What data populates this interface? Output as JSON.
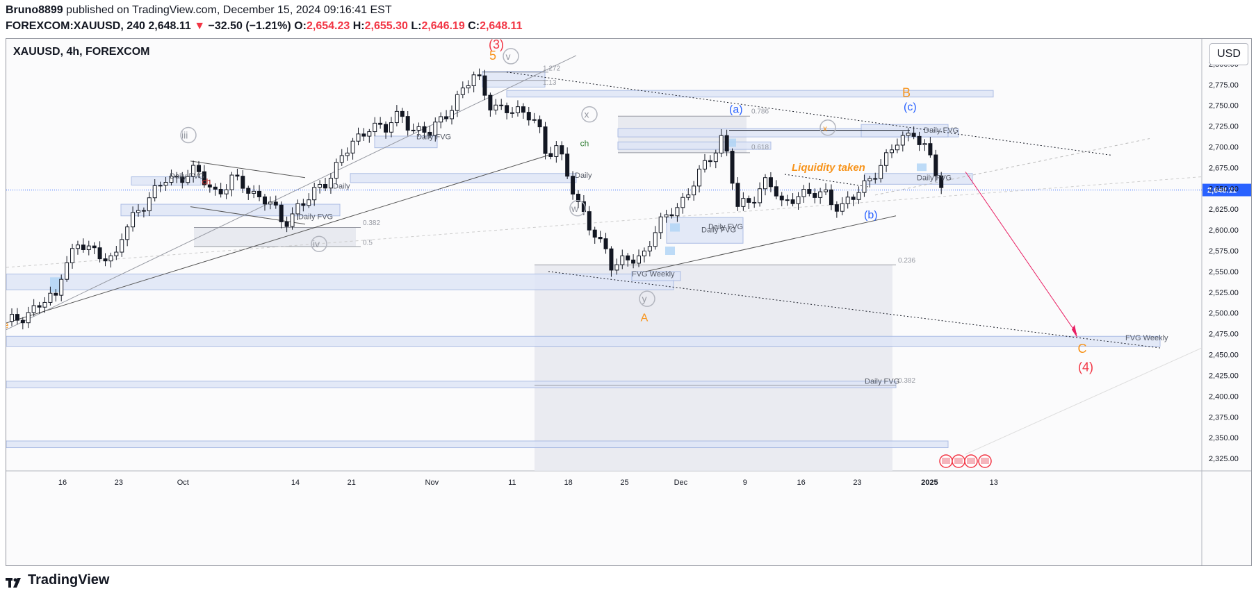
{
  "header": {
    "author": "Bruno8899",
    "published_text": "published on TradingView.com, December 15, 2024 09:16:41 EST",
    "ticker": "FOREXCOM:XAUUSD, 240",
    "last": "2,648.11",
    "change_arrow": "▼",
    "change": "−32.50 (−1.21%)",
    "o_label": "O:",
    "o": "2,654.23",
    "h_label": "H:",
    "h": "2,655.30",
    "l_label": "L:",
    "l": "2,646.19",
    "c_label": "C:",
    "c": "2,648.11"
  },
  "chart_title": "XAUUSD, 4h, FOREXCOM",
  "currency_button": "USD",
  "footer_brand": "TradingView",
  "colors": {
    "up": "#131722",
    "down": "#131722",
    "fvg": "#dde4f5",
    "orange": "#f7931a",
    "red": "#f23645",
    "blue": "#2962ff"
  },
  "chart_data": {
    "type": "candlestick",
    "title": "XAUUSD, 4h, FOREXCOM",
    "ylim": [
      2310,
      2830
    ],
    "y_ticks": [
      "2,800.00",
      "2,775.00",
      "2,750.00",
      "2,725.00",
      "2,700.00",
      "2,675.00",
      "2,650.00",
      "2,625.00",
      "2,600.00",
      "2,575.00",
      "2,550.00",
      "2,525.00",
      "2,500.00",
      "2,475.00",
      "2,450.00",
      "2,425.00",
      "2,400.00",
      "2,375.00",
      "2,350.00",
      "2,325.00"
    ],
    "y_tick_values": [
      2800,
      2775,
      2750,
      2725,
      2700,
      2675,
      2650,
      2625,
      2600,
      2575,
      2550,
      2525,
      2500,
      2475,
      2450,
      2425,
      2400,
      2375,
      2350,
      2325
    ],
    "x_ticks": [
      "16",
      "23",
      "Oct",
      "14",
      "21",
      "Nov",
      "11",
      "18",
      "25",
      "Dec",
      "9",
      "16",
      "23",
      "2025",
      "13"
    ],
    "x_tick_days": [
      0,
      7,
      15,
      29,
      36,
      46,
      56,
      63,
      70,
      77,
      85,
      92,
      99,
      108,
      116
    ],
    "x_start": "2024-09-12",
    "last_price": "2,648.11",
    "last_price_value": 2648.11,
    "price_path": [
      [
        -2,
        2490
      ],
      [
        2,
        2510
      ],
      [
        4,
        2520
      ],
      [
        5,
        2560
      ],
      [
        7,
        2580
      ],
      [
        9,
        2575
      ],
      [
        11,
        2570
      ],
      [
        12,
        2560
      ],
      [
        13,
        2590
      ],
      [
        15,
        2625
      ],
      [
        17,
        2640
      ],
      [
        19,
        2660
      ],
      [
        21,
        2665
      ],
      [
        23,
        2670
      ],
      [
        24,
        2660
      ],
      [
        26,
        2645
      ],
      [
        28,
        2660
      ],
      [
        30,
        2650
      ],
      [
        33,
        2635
      ],
      [
        35,
        2605
      ],
      [
        37,
        2630
      ],
      [
        39,
        2640
      ],
      [
        41,
        2660
      ],
      [
        43,
        2690
      ],
      [
        45,
        2705
      ],
      [
        47,
        2730
      ],
      [
        49,
        2720
      ],
      [
        51,
        2740
      ],
      [
        53,
        2720
      ],
      [
        55,
        2715
      ],
      [
        57,
        2740
      ],
      [
        59,
        2760
      ],
      [
        61,
        2785
      ],
      [
        62,
        2780
      ],
      [
        63,
        2755
      ],
      [
        65,
        2740
      ],
      [
        67,
        2745
      ],
      [
        69,
        2740
      ],
      [
        70,
        2715
      ],
      [
        71,
        2680
      ],
      [
        72,
        2705
      ],
      [
        73,
        2690
      ],
      [
        74,
        2665
      ],
      [
        75,
        2630
      ],
      [
        77,
        2600
      ],
      [
        79,
        2580
      ],
      [
        80,
        2550
      ],
      [
        82,
        2565
      ],
      [
        84,
        2570
      ],
      [
        86,
        2600
      ],
      [
        88,
        2625
      ],
      [
        90,
        2640
      ],
      [
        92,
        2670
      ],
      [
        94,
        2700
      ],
      [
        95,
        2715
      ],
      [
        96,
        2670
      ],
      [
        97,
        2625
      ],
      [
        99,
        2640
      ],
      [
        101,
        2660
      ],
      [
        103,
        2630
      ],
      [
        105,
        2645
      ],
      [
        107,
        2640
      ],
      [
        109,
        2645
      ],
      [
        111,
        2625
      ],
      [
        113,
        2640
      ],
      [
        115,
        2665
      ],
      [
        117,
        2680
      ],
      [
        119,
        2710
      ],
      [
        121,
        2720
      ],
      [
        122,
        2700
      ],
      [
        123,
        2690
      ],
      [
        124,
        2670
      ],
      [
        125,
        2648
      ]
    ],
    "price_path_x_units": "approx bar index (4h bars, compressed)",
    "fib_labels": [
      "1.272",
      "1.13",
      "0.786",
      "0.618",
      "0.382",
      "0.5",
      "0.236",
      "0.382"
    ],
    "fvg_labels": [
      "Daily FVG",
      "Daily FVG",
      "Daily",
      "Daily FVG",
      "Daily",
      "Daily FVG",
      "Daily FVG",
      "Daily FVG",
      "FVG Weekly",
      "FVG Weekly",
      "Daily FVG",
      "Daily FVG"
    ],
    "wave_labels": {
      "w3_paren": "(3)",
      "w5": "5",
      "wv": "v",
      "wiii": "iii",
      "wiv": "iv",
      "wx": "x",
      "ww": "w",
      "wy": "y",
      "wA": "A",
      "wa": "(a)",
      "wb": "(b)",
      "wc": "(c)",
      "wB": "B",
      "wC": "C",
      "w4_paren": "(4)",
      "ch": "ch",
      "ch2": "ch",
      "x_small": "x",
      "ze": "ze"
    },
    "annotation": "Liquidity taken"
  }
}
